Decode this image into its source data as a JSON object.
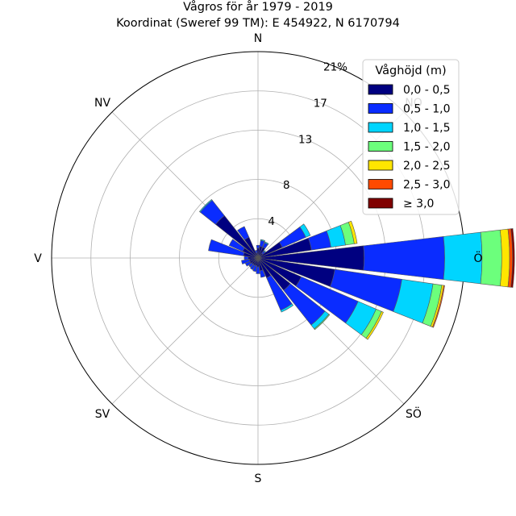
{
  "chart_data": {
    "type": "windrose",
    "title": "Vågros för år 1979 - 2019",
    "subtitle": "Koordinat (Sweref 99 TM): E 454922, N 6170794",
    "legend": {
      "title": "Våghöjd (m)",
      "placement": "top-right",
      "entries": [
        "0,0 - 0,5",
        "0,5 - 1,0",
        "1,0 - 1,5",
        "1,5 - 2,0",
        "2,0 - 2,5",
        "2,5 - 3,0",
        "≥ 3,0"
      ],
      "colors": [
        "#000080",
        "#0a2cff",
        "#00d5ff",
        "#6cff7c",
        "#ffe600",
        "#ff4a00",
        "#800000"
      ]
    },
    "compass_labels": [
      "N",
      "NO",
      "Ö",
      "SÖ",
      "S",
      "SV",
      "V",
      "NV"
    ],
    "radial_ticks": [
      "4",
      "8",
      "13",
      "17",
      "21%"
    ],
    "r_values": [
      4,
      8,
      13,
      17,
      21
    ],
    "r_max": 21,
    "grid": true,
    "sector_width_deg": 15,
    "directions_deg": [
      0,
      15,
      30,
      45,
      60,
      75,
      90,
      105,
      120,
      135,
      150,
      165,
      180,
      195,
      210,
      225,
      240,
      255,
      270,
      285,
      300,
      315,
      330,
      345
    ],
    "series": [
      {
        "name": "0,0 - 0,5",
        "values": [
          1.0,
          1.2,
          1.2,
          0.6,
          2.7,
          5.5,
          10.8,
          7.9,
          4.8,
          4.2,
          2.2,
          1.3,
          0.9,
          0.8,
          0.8,
          0.8,
          0.9,
          0.9,
          1.0,
          1.5,
          1.7,
          5.5,
          2.3,
          0.5
        ]
      },
      {
        "name": "0,5 - 1,0",
        "values": [
          0.3,
          0.6,
          0.5,
          0.3,
          2.6,
          2.0,
          8.2,
          6.9,
          6.3,
          4.5,
          3.6,
          0.7,
          0.7,
          0.6,
          0.5,
          0.4,
          0.5,
          0.8,
          0.4,
          3.6,
          1.5,
          2.0,
          1.2,
          0.3
        ]
      },
      {
        "name": "1,0 - 1,5",
        "values": [
          0.0,
          0.1,
          0.1,
          0.1,
          0.5,
          1.5,
          3.8,
          3.2,
          2.0,
          0.5,
          0.2,
          0.0,
          0.0,
          0.0,
          0.0,
          0.0,
          0.0,
          0.0,
          0.0,
          0.0,
          0.0,
          0.1,
          0.0,
          0.0
        ]
      },
      {
        "name": "1,5 - 2,0",
        "values": [
          0.0,
          0.0,
          0.0,
          0.0,
          0.0,
          0.9,
          2.0,
          0.9,
          0.6,
          0.1,
          0.0,
          0.0,
          0.0,
          0.0,
          0.0,
          0.0,
          0.0,
          0.0,
          0.0,
          0.0,
          0.0,
          0.0,
          0.0,
          0.0
        ]
      },
      {
        "name": "2,0 - 2,5",
        "values": [
          0.0,
          0.0,
          0.0,
          0.0,
          0.0,
          0.3,
          0.8,
          0.2,
          0.2,
          0.0,
          0.0,
          0.0,
          0.0,
          0.0,
          0.0,
          0.0,
          0.0,
          0.0,
          0.0,
          0.0,
          0.0,
          0.0,
          0.0,
          0.0
        ]
      },
      {
        "name": "2,5 - 3,0",
        "values": [
          0.0,
          0.0,
          0.0,
          0.0,
          0.0,
          0.0,
          0.3,
          0.1,
          0.0,
          0.0,
          0.0,
          0.0,
          0.0,
          0.0,
          0.0,
          0.0,
          0.0,
          0.0,
          0.0,
          0.0,
          0.0,
          0.0,
          0.0,
          0.0
        ]
      },
      {
        "name": "≥ 3,0",
        "values": [
          0.0,
          0.0,
          0.0,
          0.0,
          0.0,
          0.0,
          0.2,
          0.0,
          0.0,
          0.0,
          0.0,
          0.0,
          0.0,
          0.0,
          0.0,
          0.0,
          0.0,
          0.0,
          0.0,
          0.0,
          0.0,
          0.0,
          0.0,
          0.0
        ]
      }
    ]
  }
}
